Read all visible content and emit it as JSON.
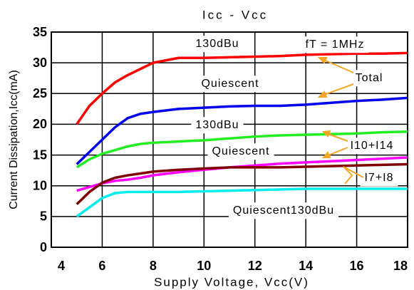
{
  "chart_data": {
    "type": "line",
    "title": "Icc - Vcc",
    "x_label": "Supply Voltage, Vcc(V)",
    "y_label": "Current Dissipation,Icc(mA)",
    "x": [
      5,
      5.5,
      6,
      6.5,
      7,
      7.5,
      8,
      9,
      10,
      11,
      12,
      13,
      14,
      15,
      16,
      17,
      18
    ],
    "series": [
      {
        "color": "#ff0000",
        "values": [
          20,
          23,
          25,
          26.8,
          28,
          29,
          30,
          30.8,
          30.8,
          30.9,
          31,
          31.1,
          31.3,
          31.4,
          31.5,
          31.5,
          31.6
        ]
      },
      {
        "color": "#0000ee",
        "values": [
          13.5,
          15.5,
          17.5,
          19.5,
          21,
          21.7,
          22,
          22.5,
          22.7,
          22.9,
          23,
          23,
          23.2,
          23.5,
          23.8,
          24,
          24.3
        ]
      },
      {
        "color": "#22ee22",
        "values": [
          13,
          14.3,
          15.2,
          15.8,
          16.4,
          16.8,
          17,
          17.2,
          17.4,
          17.7,
          18,
          18.2,
          18.3,
          18.4,
          18.5,
          18.7,
          18.8
        ]
      },
      {
        "color": "#ff00ff",
        "values": [
          9.2,
          9.8,
          10.4,
          10.8,
          11,
          11.3,
          11.7,
          12.2,
          12.6,
          13,
          13.3,
          13.6,
          13.8,
          14,
          14.2,
          14.4,
          14.6
        ]
      },
      {
        "color": "#800000",
        "values": [
          7,
          9,
          10.5,
          11.3,
          11.7,
          12,
          12.3,
          12.6,
          12.8,
          13,
          13,
          13,
          13.1,
          13.2,
          13.3,
          13.4,
          13.5
        ]
      },
      {
        "color": "#00eeee",
        "values": [
          5,
          6.5,
          8,
          8.8,
          9,
          9,
          9,
          9,
          9.1,
          9.2,
          9.3,
          9.4,
          9.5,
          9.5,
          9.5,
          9.5,
          9.5
        ]
      }
    ],
    "annotations": [
      "130dBu",
      "fT = 1MHz",
      "Total",
      "Quiescent",
      "130dBu",
      "Quiescent",
      "I10+I14",
      "I7+I8",
      "Quiescent130dBu"
    ],
    "xlim": [
      4,
      18
    ],
    "xticks": [
      4,
      6,
      8,
      10,
      12,
      14,
      16,
      18
    ],
    "ylim": [
      0,
      35
    ],
    "yticks": [
      0,
      5,
      10,
      15,
      20,
      25,
      30,
      35
    ],
    "grid": true
  }
}
